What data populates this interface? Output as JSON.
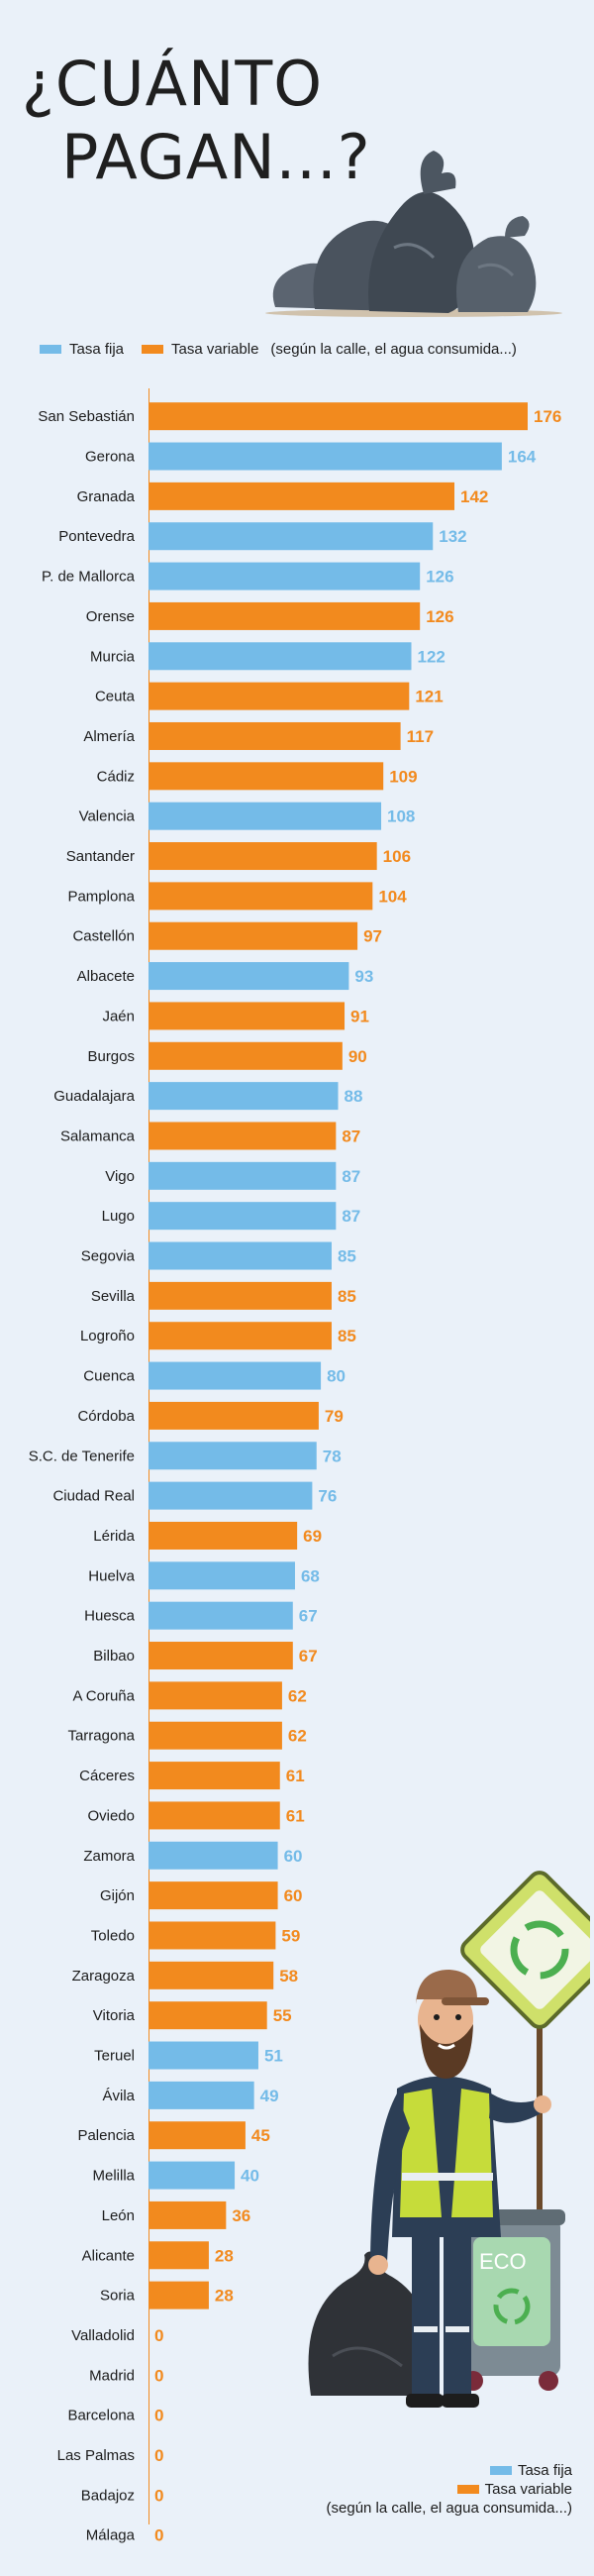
{
  "header": {
    "title_line1": "¿CUÁNTO",
    "title_line2": "PAGAN...?"
  },
  "legend": {
    "fixed_label": "Tasa fija",
    "variable_label": "Tasa variable",
    "variable_note": "(según la calle, el agua consumida...)"
  },
  "colors": {
    "fixed": "#74bbe8",
    "variable": "#f28a1e",
    "background": "#eaf1f9"
  },
  "chart_data": {
    "type": "bar",
    "orientation": "horizontal",
    "title": "¿CUÁNTO PAGAN...?",
    "xlim": [
      0,
      176
    ],
    "series": [
      {
        "name": "Tasa fija",
        "color": "#74bbe8"
      },
      {
        "name": "Tasa variable (según la calle, el agua consumida...)",
        "color": "#f28a1e"
      }
    ],
    "categories": [
      "San Sebastián",
      "Gerona",
      "Granada",
      "Pontevedra",
      "P. de Mallorca",
      "Orense",
      "Murcia",
      "Ceuta",
      "Almería",
      "Cádiz",
      "Valencia",
      "Santander",
      "Pamplona",
      "Castellón",
      "Albacete",
      "Jaén",
      "Burgos",
      "Guadalajara",
      "Salamanca",
      "Vigo",
      "Lugo",
      "Segovia",
      "Sevilla",
      "Logroño",
      "Cuenca",
      "Córdoba",
      "S.C. de Tenerife",
      "Ciudad Real",
      "Lérida",
      "Huelva",
      "Huesca",
      "Bilbao",
      "A Coruña",
      "Tarragona",
      "Cáceres",
      "Oviedo",
      "Zamora",
      "Gijón",
      "Toledo",
      "Zaragoza",
      "Vitoria",
      "Teruel",
      "Ávila",
      "Palencia",
      "Melilla",
      "León",
      "Alicante",
      "Soria",
      "Valladolid",
      "Madrid",
      "Barcelona",
      "Las Palmas",
      "Badajoz",
      "Málaga"
    ],
    "values": [
      176,
      164,
      142,
      132,
      126,
      126,
      122,
      121,
      117,
      109,
      108,
      106,
      104,
      97,
      93,
      91,
      90,
      88,
      87,
      87,
      87,
      85,
      85,
      85,
      80,
      79,
      78,
      76,
      69,
      68,
      67,
      67,
      62,
      62,
      61,
      61,
      60,
      60,
      59,
      58,
      55,
      51,
      49,
      45,
      40,
      36,
      28,
      28,
      0,
      0,
      0,
      0,
      0,
      0
    ],
    "rate_type": [
      "variable",
      "fixed",
      "variable",
      "fixed",
      "fixed",
      "variable",
      "fixed",
      "variable",
      "variable",
      "variable",
      "fixed",
      "variable",
      "variable",
      "variable",
      "fixed",
      "variable",
      "variable",
      "fixed",
      "variable",
      "fixed",
      "fixed",
      "fixed",
      "variable",
      "variable",
      "fixed",
      "variable",
      "fixed",
      "fixed",
      "variable",
      "fixed",
      "fixed",
      "variable",
      "variable",
      "variable",
      "variable",
      "variable",
      "fixed",
      "variable",
      "variable",
      "variable",
      "variable",
      "fixed",
      "fixed",
      "variable",
      "fixed",
      "variable",
      "variable",
      "variable",
      "variable",
      "variable",
      "variable",
      "variable",
      "variable",
      "variable"
    ]
  },
  "illustrations": [
    "garbage-bags",
    "sanitation-worker",
    "recycle-sign",
    "eco-bin"
  ],
  "eco_bin_label": "ECO"
}
